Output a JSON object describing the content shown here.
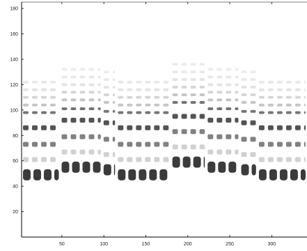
{
  "chart_data": {
    "type": "heatmap",
    "title": "",
    "xlabel": "",
    "ylabel": "",
    "xlim": [
      2,
      342
    ],
    "ylim": [
      0,
      185
    ],
    "x_ticks": [
      "50",
      "100",
      "150",
      "200",
      "250",
      "300"
    ],
    "y_ticks": [
      "20",
      "40",
      "60",
      "80",
      "100",
      "120",
      "140",
      "160",
      "180"
    ],
    "grid": false,
    "colormap": "white-to-black (higher intensity is darker)",
    "segments": [
      {
        "x": [
          2,
          48
        ],
        "base": 49,
        "harmonics": [
          49,
          61,
          73,
          86,
          98,
          104,
          110,
          116,
          122
        ]
      },
      {
        "x": [
          48,
          98
        ],
        "base": 55,
        "harmonics": [
          55,
          67,
          79,
          92,
          101,
          108,
          114,
          120,
          126,
          132
        ]
      },
      {
        "x": [
          98,
          115
        ],
        "base": 53,
        "harmonics": [
          53,
          65,
          77,
          90,
          99,
          106,
          112,
          118,
          124,
          130
        ]
      },
      {
        "x": [
          115,
          180
        ],
        "base": 49,
        "harmonics": [
          49,
          61,
          73,
          86,
          98,
          104,
          110,
          116,
          122
        ]
      },
      {
        "x": [
          180,
          222
        ],
        "base": 59,
        "harmonics": [
          59,
          71,
          83,
          95,
          106,
          112,
          118,
          124,
          130,
          136
        ]
      },
      {
        "x": [
          222,
          262
        ],
        "base": 55,
        "harmonics": [
          55,
          67,
          79,
          92,
          101,
          108,
          114,
          120,
          126,
          132
        ]
      },
      {
        "x": [
          262,
          283
        ],
        "base": 53,
        "harmonics": [
          53,
          65,
          77,
          90,
          99,
          106,
          112,
          118,
          124,
          130
        ]
      },
      {
        "x": [
          283,
          342
        ],
        "base": 49,
        "harmonics": [
          49,
          61,
          73,
          86,
          98,
          104,
          110,
          116,
          122
        ]
      }
    ],
    "harmonic_intensity": [
      0.85,
      0.2,
      0.55,
      0.75,
      0.6,
      0.25,
      0.18,
      0.12,
      0.1,
      0.08
    ]
  }
}
